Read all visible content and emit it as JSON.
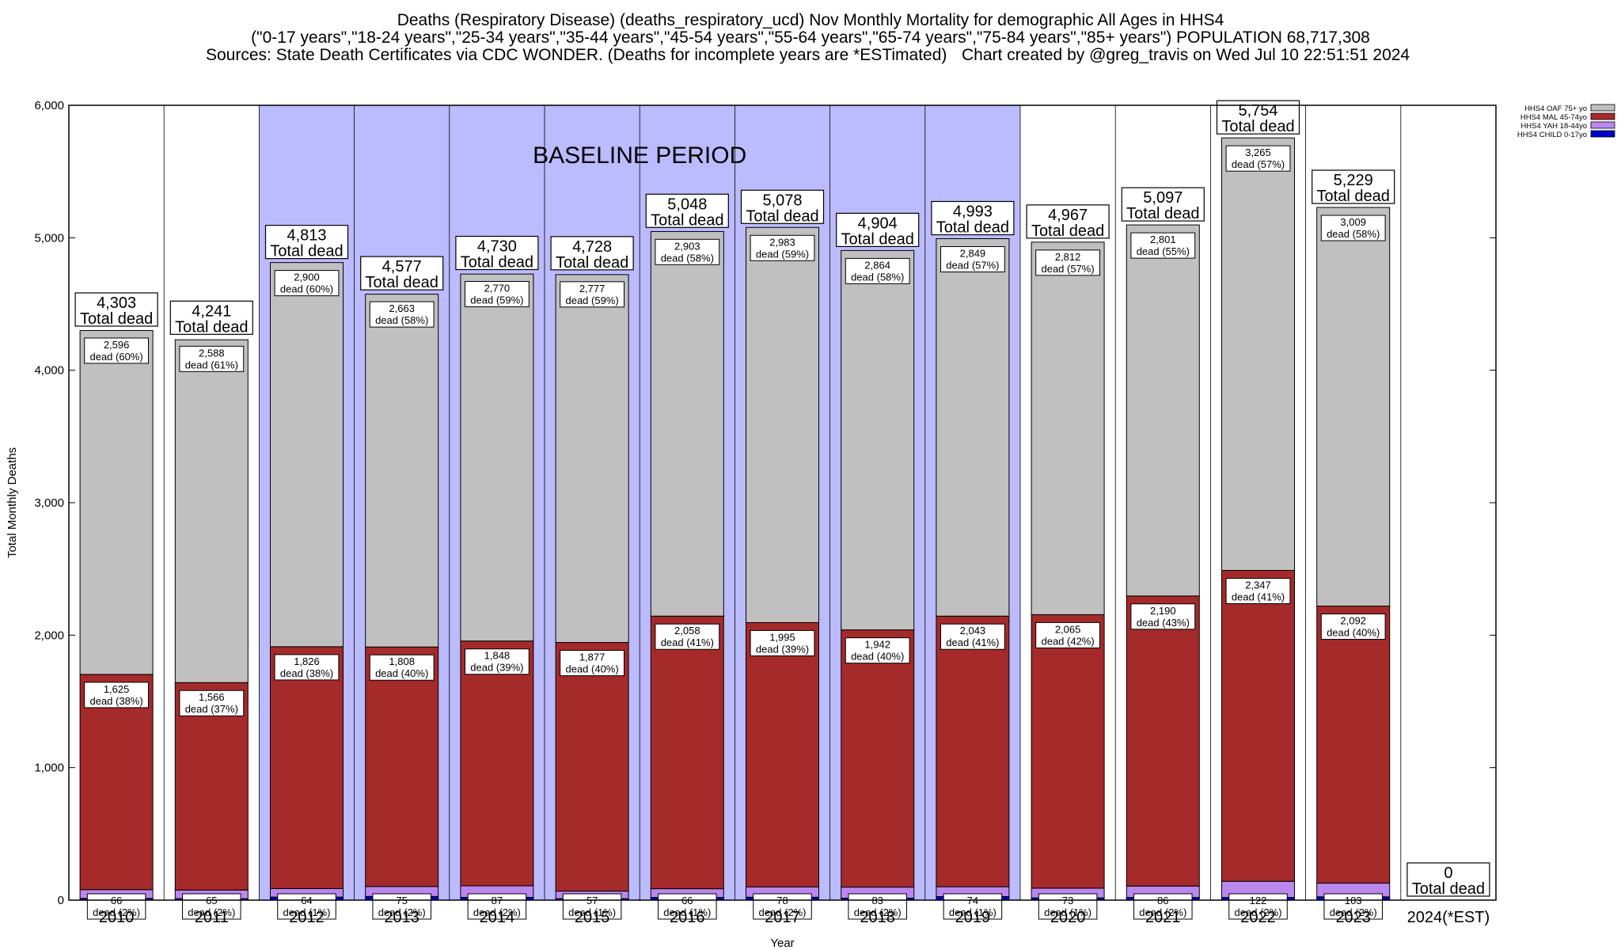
{
  "chart_data": {
    "type": "bar",
    "stacked": true,
    "title": "Deaths (Respiratory Disease) (deaths_respiratory_ucd) Nov Monthly Mortality for demographic All Ages in HHS4",
    "subtitle": "(\"0-17 years\",\"18-24 years\",\"25-34 years\",\"35-44 years\",\"45-54 years\",\"55-64 years\",\"65-74 years\",\"75-84 years\",\"85+ years\") POPULATION 68,717,308",
    "sources": "Sources: State Death Certificates via CDC WONDER. (Deaths for incomplete years are *ESTimated)",
    "credit": "Chart created by @greg_travis on Wed Jul 10 22:51:51 2024",
    "xlabel": "Year",
    "ylabel": "Total Monthly Deaths",
    "ylim": [
      0,
      6000
    ],
    "yticks": [
      "0",
      "1,000",
      "2,000",
      "3,000",
      "4,000",
      "5,000",
      "6,000"
    ],
    "categories": [
      "2010",
      "2011",
      "2012",
      "2013",
      "2014",
      "2015",
      "2016",
      "2017",
      "2018",
      "2019",
      "2020",
      "2021",
      "2022",
      "2023",
      "2024(*EST)"
    ],
    "baseline_label": "BASELINE PERIOD",
    "baseline_range": [
      "2012",
      "2019"
    ],
    "total_suffix": "Total dead",
    "totals": [
      4303,
      4241,
      4813,
      4577,
      4730,
      4728,
      5048,
      5078,
      4904,
      4993,
      4967,
      5097,
      5754,
      5229,
      0
    ],
    "total_labels": [
      "4,303",
      "4,241",
      "4,813",
      "4,577",
      "4,730",
      "4,728",
      "5,048",
      "5,078",
      "4,904",
      "4,993",
      "4,967",
      "5,097",
      "5,754",
      "5,229",
      "0"
    ],
    "series": [
      {
        "name": "HHS4 CHILD 0-17yo",
        "color": "#0000cc",
        "values": [
          13,
          11,
          23,
          28,
          21,
          11,
          20,
          22,
          15,
          27,
          17,
          20,
          20,
          25,
          0
        ]
      },
      {
        "name": "HHS4 YAH 18-44yo",
        "color": "#bb88ee",
        "values": [
          66,
          65,
          64,
          75,
          87,
          57,
          66,
          78,
          83,
          74,
          73,
          86,
          122,
          103,
          0
        ],
        "labels": [
          "66",
          "65",
          "64",
          "75",
          "87",
          "57",
          "66",
          "78",
          "83",
          "74",
          "73",
          "86",
          "122",
          "103",
          ""
        ],
        "label_pcts": [
          "dead (2%)",
          "dead (2%)",
          "dead (1%)",
          "dead (2%)",
          "dead (2%)",
          "dead (1%)",
          "dead (1%)",
          "dead (2%)",
          "dead (2%)",
          "dead (1%)",
          "dead (1%)",
          "dead (2%)",
          "dead (2%)",
          "dead (2%)",
          ""
        ]
      },
      {
        "name": "HHS4 MAL 45-74yo",
        "color": "#a52a2a",
        "values": [
          1625,
          1566,
          1826,
          1808,
          1848,
          1877,
          2058,
          1995,
          1942,
          2043,
          2065,
          2190,
          2347,
          2092,
          0
        ],
        "labels": [
          "1,625",
          "1,566",
          "1,826",
          "1,808",
          "1,848",
          "1,877",
          "2,058",
          "1,995",
          "1,942",
          "2,043",
          "2,065",
          "2,190",
          "2,347",
          "2,092",
          ""
        ],
        "label_pcts": [
          "dead (38%)",
          "dead (37%)",
          "dead (38%)",
          "dead (40%)",
          "dead (39%)",
          "dead (40%)",
          "dead (41%)",
          "dead (39%)",
          "dead (40%)",
          "dead (41%)",
          "dead (42%)",
          "dead (43%)",
          "dead (41%)",
          "dead (40%)",
          ""
        ]
      },
      {
        "name": "HHS4 OAF 75+ yo",
        "color": "#c0c0c0",
        "values": [
          2596,
          2588,
          2900,
          2663,
          2770,
          2777,
          2903,
          2983,
          2864,
          2849,
          2812,
          2801,
          3265,
          3009,
          0
        ],
        "labels": [
          "2,596",
          "2,588",
          "2,900",
          "2,663",
          "2,770",
          "2,777",
          "2,903",
          "2,983",
          "2,864",
          "2,849",
          "2,812",
          "2,801",
          "3,265",
          "3,009",
          ""
        ],
        "label_pcts": [
          "dead (60%)",
          "dead (61%)",
          "dead (60%)",
          "dead (58%)",
          "dead (59%)",
          "dead (59%)",
          "dead (58%)",
          "dead (59%)",
          "dead (58%)",
          "dead (57%)",
          "dead (57%)",
          "dead (55%)",
          "dead (57%)",
          "dead (58%)",
          ""
        ]
      }
    ],
    "legend_placement": "top-right",
    "legend_order": [
      "HHS4 OAF 75+ yo",
      "HHS4 MAL 45-74yo",
      "HHS4 YAH 18-44yo",
      "HHS4 CHILD 0-17yo"
    ],
    "grid": "vertical"
  }
}
